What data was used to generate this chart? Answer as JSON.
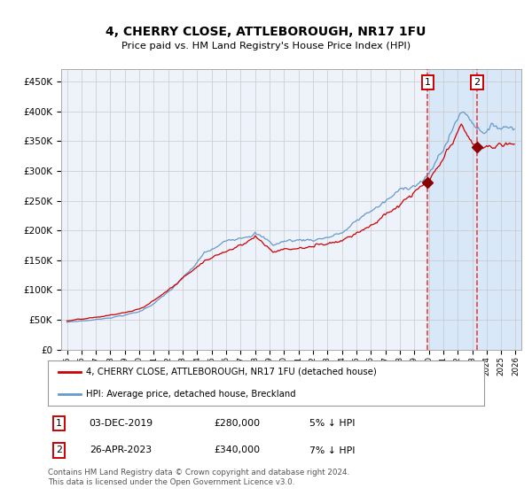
{
  "title": "4, CHERRY CLOSE, ATTLEBOROUGH, NR17 1FU",
  "subtitle": "Price paid vs. HM Land Registry's House Price Index (HPI)",
  "legend_red": "4, CHERRY CLOSE, ATTLEBOROUGH, NR17 1FU (detached house)",
  "legend_blue": "HPI: Average price, detached house, Breckland",
  "sale1_date": "03-DEC-2019",
  "sale1_price": "£280,000",
  "sale1_note": "5% ↓ HPI",
  "sale2_date": "26-APR-2023",
  "sale2_price": "£340,000",
  "sale2_note": "7% ↓ HPI",
  "footer": "Contains HM Land Registry data © Crown copyright and database right 2024.\nThis data is licensed under the Open Government Licence v3.0.",
  "ylim": [
    0,
    470000
  ],
  "yticks": [
    0,
    50000,
    100000,
    150000,
    200000,
    250000,
    300000,
    350000,
    400000,
    450000
  ],
  "background_color": "#ffffff",
  "plot_bg_color": "#eef3fb",
  "grid_color": "#c8c8c8",
  "red_line_color": "#cc0000",
  "blue_line_color": "#6699cc",
  "dashed_line_color": "#ee3333",
  "highlight_bg": "#d8e8f8",
  "sale1_x_year": 2019.917,
  "sale1_y": 280000,
  "sale2_x_year": 2023.33,
  "sale2_y": 340000,
  "xmin": 1994.6,
  "xmax": 2026.4
}
